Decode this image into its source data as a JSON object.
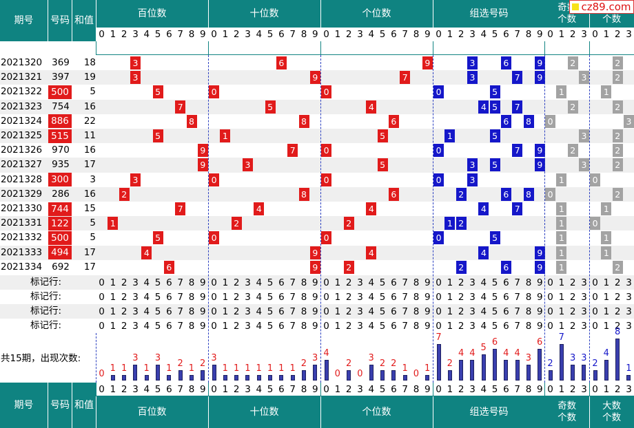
{
  "logo": "cz89.com",
  "header": {
    "issue": "期号",
    "number": "号码",
    "sum": "和值",
    "hundreds": "百位数",
    "tens": "十位数",
    "units": "个位数",
    "group": "组选号码",
    "odd": [
      "奇数",
      "个数"
    ],
    "big": [
      "大数",
      "个数"
    ]
  },
  "digits10": [
    "0",
    "1",
    "2",
    "3",
    "4",
    "5",
    "6",
    "7",
    "8",
    "9"
  ],
  "digits4": [
    "0",
    "1",
    "2",
    "3"
  ],
  "mark_label": "标记行:",
  "summary_label": "共15期，出现次数:",
  "colors": {
    "header_bg": "#0f8381",
    "red": "#e11b1b",
    "blue": "#1517c9",
    "gray": "#a3a3a3",
    "bar": "#3a3fae"
  },
  "chart_data": {
    "type": "table",
    "rows": [
      {
        "issue": "2021320",
        "number": "369",
        "sum": "18",
        "red": false,
        "h": 3,
        "t": 6,
        "u": 9,
        "group": [
          3,
          6,
          9
        ],
        "odd": 2,
        "big": 2
      },
      {
        "issue": "2021321",
        "number": "397",
        "sum": "19",
        "red": false,
        "h": 3,
        "t": 9,
        "u": 7,
        "group": [
          3,
          7,
          9
        ],
        "odd": 3,
        "big": 2
      },
      {
        "issue": "2021322",
        "number": "500",
        "sum": "5",
        "red": true,
        "h": 5,
        "t": 0,
        "u": 0,
        "group": [
          0,
          5
        ],
        "odd": 1,
        "big": 1
      },
      {
        "issue": "2021323",
        "number": "754",
        "sum": "16",
        "red": false,
        "h": 7,
        "t": 5,
        "u": 4,
        "group": [
          4,
          5,
          7
        ],
        "odd": 2,
        "big": 2
      },
      {
        "issue": "2021324",
        "number": "886",
        "sum": "22",
        "red": true,
        "h": 8,
        "t": 8,
        "u": 6,
        "group": [
          6,
          8
        ],
        "odd": 0,
        "big": 3
      },
      {
        "issue": "2021325",
        "number": "515",
        "sum": "11",
        "red": true,
        "h": 5,
        "t": 1,
        "u": 5,
        "group": [
          1,
          5
        ],
        "odd": 3,
        "big": 2
      },
      {
        "issue": "2021326",
        "number": "970",
        "sum": "16",
        "red": false,
        "h": 9,
        "t": 7,
        "u": 0,
        "group": [
          0,
          7,
          9
        ],
        "odd": 2,
        "big": 2
      },
      {
        "issue": "2021327",
        "number": "935",
        "sum": "17",
        "red": false,
        "h": 9,
        "t": 3,
        "u": 5,
        "group": [
          3,
          5,
          9
        ],
        "odd": 3,
        "big": 2
      },
      {
        "issue": "2021328",
        "number": "300",
        "sum": "3",
        "red": true,
        "h": 3,
        "t": 0,
        "u": 0,
        "group": [
          0,
          3
        ],
        "odd": 1,
        "big": 0
      },
      {
        "issue": "2021329",
        "number": "286",
        "sum": "16",
        "red": false,
        "h": 2,
        "t": 8,
        "u": 6,
        "group": [
          2,
          6,
          8
        ],
        "odd": 0,
        "big": 2
      },
      {
        "issue": "2021330",
        "number": "744",
        "sum": "15",
        "red": true,
        "h": 7,
        "t": 4,
        "u": 4,
        "group": [
          4,
          7
        ],
        "odd": 1,
        "big": 1
      },
      {
        "issue": "2021331",
        "number": "122",
        "sum": "5",
        "red": true,
        "h": 1,
        "t": 2,
        "u": 2,
        "group": [
          1,
          2
        ],
        "odd": 1,
        "big": 0
      },
      {
        "issue": "2021332",
        "number": "500",
        "sum": "5",
        "red": true,
        "h": 5,
        "t": 0,
        "u": 0,
        "group": [
          0,
          5
        ],
        "odd": 1,
        "big": 1
      },
      {
        "issue": "2021333",
        "number": "494",
        "sum": "17",
        "red": true,
        "h": 4,
        "t": 9,
        "u": 4,
        "group": [
          4,
          9
        ],
        "odd": 1,
        "big": 1
      },
      {
        "issue": "2021334",
        "number": "692",
        "sum": "17",
        "red": false,
        "h": 6,
        "t": 9,
        "u": 2,
        "group": [
          2,
          6,
          9
        ],
        "odd": 1,
        "big": 2
      }
    ],
    "counts": {
      "hundreds": [
        0,
        1,
        1,
        3,
        1,
        3,
        1,
        2,
        1,
        2
      ],
      "tens": [
        3,
        1,
        1,
        1,
        1,
        1,
        1,
        1,
        2,
        3
      ],
      "units": [
        4,
        0,
        2,
        0,
        3,
        2,
        2,
        1,
        0,
        1
      ],
      "group": [
        7,
        2,
        4,
        4,
        5,
        6,
        4,
        4,
        3,
        6
      ],
      "odd": [
        2,
        7,
        3,
        3
      ],
      "big": [
        2,
        4,
        8,
        1
      ]
    }
  }
}
